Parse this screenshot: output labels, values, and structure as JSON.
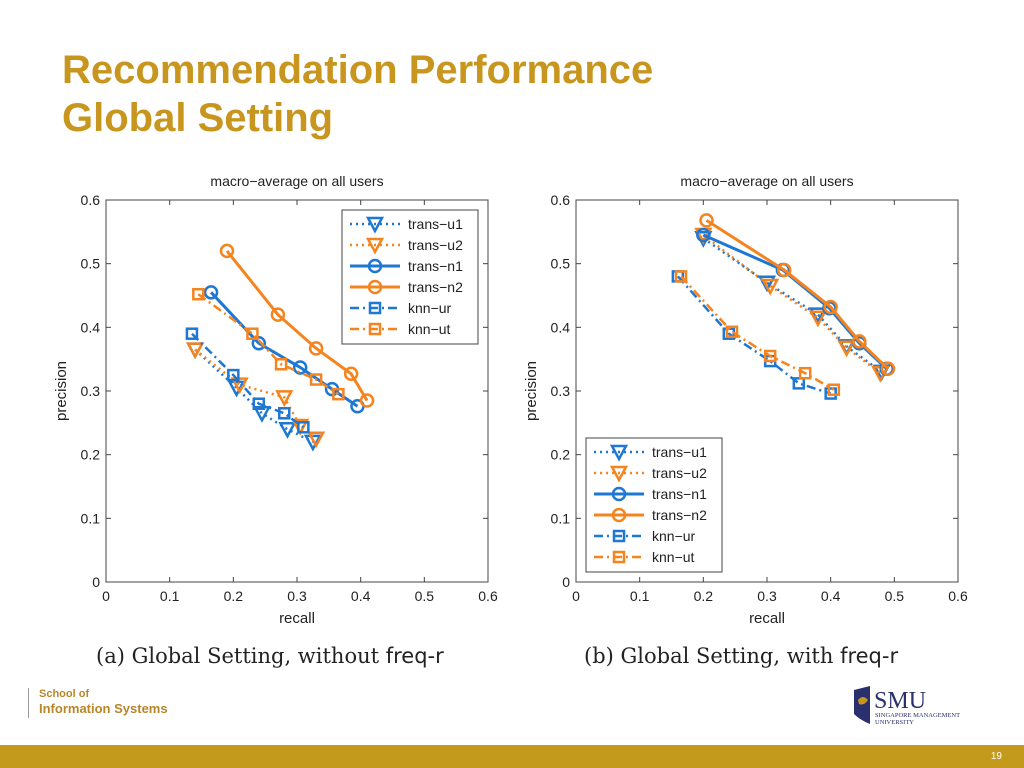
{
  "slide": {
    "title_line1": "Recommendation Performance",
    "title_line2": "Global Setting",
    "page_number": "19",
    "school_line1": "School of",
    "school_line2": "Information Systems",
    "smu_logo_text": "SMU",
    "smu_logo_sub1": "SINGAPORE MANAGEMENT",
    "smu_logo_sub2": "UNIVERSITY",
    "caption_a_prefix": "(a) Global Setting, without ",
    "caption_a_code": "freq-r",
    "caption_b_prefix": "(b) Global Setting, with ",
    "caption_b_code": "freq-r",
    "colors": {
      "accent": "#c8961e",
      "footer": "#c49a1c",
      "blue": "#1f77d4",
      "orange": "#f5841f"
    }
  },
  "chart_data": [
    {
      "type": "line",
      "title": "macro−average on all users",
      "xlabel": "recall",
      "ylabel": "precision",
      "xlim": [
        0,
        0.6
      ],
      "ylim": [
        0,
        0.6
      ],
      "xticks": [
        "0",
        "0.1",
        "0.2",
        "0.3",
        "0.4",
        "0.5",
        "0.6"
      ],
      "yticks": [
        "0",
        "0.1",
        "0.2",
        "0.3",
        "0.4",
        "0.5",
        "0.6"
      ],
      "legend_position": "top-right",
      "series": [
        {
          "name": "trans−u1",
          "color": "#1f77d4",
          "style": "dotted",
          "marker": "triangle-down",
          "x": [
            0.14,
            0.205,
            0.245,
            0.285,
            0.325
          ],
          "y": [
            0.365,
            0.305,
            0.265,
            0.24,
            0.22
          ]
        },
        {
          "name": "trans−u2",
          "color": "#f5841f",
          "style": "dotted",
          "marker": "triangle-down",
          "x": [
            0.14,
            0.21,
            0.28,
            0.305,
            0.33
          ],
          "y": [
            0.365,
            0.31,
            0.29,
            0.245,
            0.225
          ]
        },
        {
          "name": "trans−n1",
          "color": "#1f77d4",
          "style": "solid",
          "marker": "circle",
          "x": [
            0.165,
            0.24,
            0.305,
            0.355,
            0.395
          ],
          "y": [
            0.455,
            0.375,
            0.337,
            0.303,
            0.276
          ]
        },
        {
          "name": "trans−n2",
          "color": "#f5841f",
          "style": "solid",
          "marker": "circle",
          "x": [
            0.19,
            0.27,
            0.33,
            0.385,
            0.41
          ],
          "y": [
            0.52,
            0.42,
            0.367,
            0.327,
            0.285
          ]
        },
        {
          "name": "knn−ur",
          "color": "#1f77d4",
          "style": "dashdot",
          "marker": "square",
          "x": [
            0.135,
            0.2,
            0.24,
            0.28,
            0.31
          ],
          "y": [
            0.39,
            0.325,
            0.28,
            0.265,
            0.243
          ]
        },
        {
          "name": "knn−ut",
          "color": "#f5841f",
          "style": "dashdot",
          "marker": "square",
          "x": [
            0.145,
            0.23,
            0.275,
            0.33,
            0.365
          ],
          "y": [
            0.452,
            0.39,
            0.342,
            0.318,
            0.295
          ]
        }
      ]
    },
    {
      "type": "line",
      "title": "macro−average on all users",
      "xlabel": "recall",
      "ylabel": "precision",
      "xlim": [
        0,
        0.6
      ],
      "ylim": [
        0,
        0.6
      ],
      "xticks": [
        "0",
        "0.1",
        "0.2",
        "0.3",
        "0.4",
        "0.5",
        "0.6"
      ],
      "yticks": [
        "0",
        "0.1",
        "0.2",
        "0.3",
        "0.4",
        "0.5",
        "0.6"
      ],
      "legend_position": "bottom-left",
      "series": [
        {
          "name": "trans−u1",
          "color": "#1f77d4",
          "style": "dotted",
          "marker": "triangle-down",
          "x": [
            0.2,
            0.3,
            0.38,
            0.425,
            0.48
          ],
          "y": [
            0.54,
            0.47,
            0.42,
            0.37,
            0.33
          ]
        },
        {
          "name": "trans−u2",
          "color": "#f5841f",
          "style": "dotted",
          "marker": "triangle-down",
          "x": [
            0.2,
            0.305,
            0.38,
            0.425,
            0.478
          ],
          "y": [
            0.545,
            0.465,
            0.415,
            0.368,
            0.328
          ]
        },
        {
          "name": "trans−n1",
          "color": "#1f77d4",
          "style": "solid",
          "marker": "circle",
          "x": [
            0.2,
            0.325,
            0.398,
            0.445,
            0.488
          ],
          "y": [
            0.545,
            0.49,
            0.43,
            0.375,
            0.335
          ]
        },
        {
          "name": "trans−n2",
          "color": "#f5841f",
          "style": "solid",
          "marker": "circle",
          "x": [
            0.205,
            0.327,
            0.4,
            0.445,
            0.49
          ],
          "y": [
            0.568,
            0.49,
            0.432,
            0.378,
            0.335
          ]
        },
        {
          "name": "knn−ur",
          "color": "#1f77d4",
          "style": "dashdot",
          "marker": "square",
          "x": [
            0.16,
            0.24,
            0.305,
            0.35,
            0.4
          ],
          "y": [
            0.48,
            0.39,
            0.347,
            0.312,
            0.296
          ]
        },
        {
          "name": "knn−ut",
          "color": "#f5841f",
          "style": "dashdot",
          "marker": "square",
          "x": [
            0.165,
            0.245,
            0.305,
            0.36,
            0.405
          ],
          "y": [
            0.48,
            0.393,
            0.355,
            0.328,
            0.302
          ]
        }
      ]
    }
  ]
}
